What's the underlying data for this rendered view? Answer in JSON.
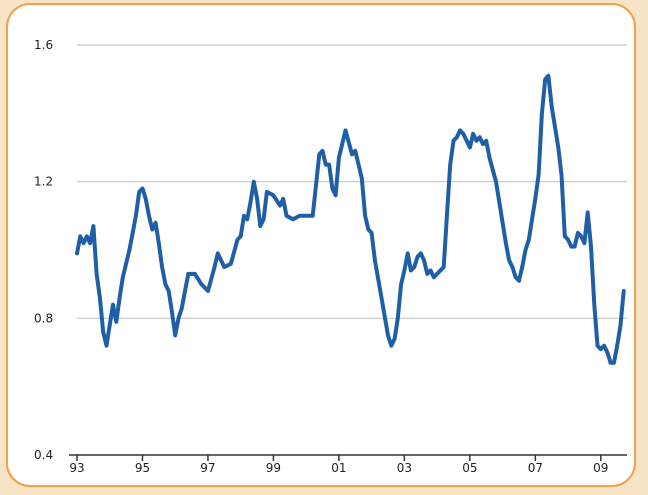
{
  "chart_data": {
    "type": "line",
    "title": "",
    "xlabel": "",
    "ylabel": "",
    "xlim": [
      1993.0,
      2009.8
    ],
    "ylim": [
      0.4,
      1.6
    ],
    "yticks": [
      0.4,
      0.8,
      1.2,
      1.6
    ],
    "ytick_labels": [
      "0.4",
      "0.8",
      "1.2",
      "1.6"
    ],
    "xticks": [
      1993,
      1995,
      1997,
      1999,
      2001,
      2003,
      2005,
      2007,
      2009
    ],
    "xtick_labels": [
      "93",
      "95",
      "97",
      "99",
      "01",
      "03",
      "05",
      "07",
      "09"
    ],
    "grid": "horizontal",
    "legend": "none",
    "colors": {
      "line": "#1f5fa6",
      "grid": "#c8c8c8",
      "axis": "#333333",
      "frame": "#f0a14a",
      "background": "#f7e3c6"
    },
    "series": [
      {
        "x": [
          1993.0,
          1993.1,
          1993.2,
          1993.3,
          1993.4,
          1993.5,
          1993.6,
          1993.7,
          1993.8,
          1993.9,
          1994.0,
          1994.1,
          1994.2,
          1994.3,
          1994.4,
          1994.5,
          1994.6,
          1994.7,
          1994.8,
          1994.9,
          1995.0,
          1995.1,
          1995.2,
          1995.3,
          1995.4,
          1995.5,
          1995.6,
          1995.7,
          1995.8,
          1995.9,
          1996.0,
          1996.1,
          1996.2,
          1996.3,
          1996.4,
          1996.5,
          1996.6,
          1996.8,
          1997.0,
          1997.2,
          1997.3,
          1997.5,
          1997.7,
          1997.9,
          1998.0,
          1998.1,
          1998.2,
          1998.3,
          1998.4,
          1998.5,
          1998.6,
          1998.7,
          1998.8,
          1999.0,
          1999.2,
          1999.3,
          1999.4,
          1999.6,
          1999.8,
          2000.0,
          2000.2,
          2000.4,
          2000.5,
          2000.6,
          2000.7,
          2000.8,
          2000.9,
          2001.0,
          2001.1,
          2001.2,
          2001.4,
          2001.5,
          2001.7,
          2001.8,
          2001.9,
          2002.0,
          2002.1,
          2002.3,
          2002.5,
          2002.6,
          2002.7,
          2002.8,
          2002.9,
          2003.0,
          2003.1,
          2003.2,
          2003.3,
          2003.4,
          2003.5,
          2003.6,
          2003.7,
          2003.8,
          2003.9,
          2004.0,
          2004.2,
          2004.3,
          2004.4,
          2004.5,
          2004.6,
          2004.7,
          2004.8,
          2005.0,
          2005.1,
          2005.2,
          2005.3,
          2005.4,
          2005.5,
          2005.6,
          2005.8,
          2006.0,
          2006.1,
          2006.2,
          2006.3,
          2006.4,
          2006.5,
          2006.6,
          2006.7,
          2006.8,
          2007.0,
          2007.1,
          2007.2,
          2007.3,
          2007.4,
          2007.5,
          2007.6,
          2007.7,
          2007.8,
          2007.9,
          2008.0,
          2008.1,
          2008.2,
          2008.3,
          2008.4,
          2008.5,
          2008.6,
          2008.7,
          2008.8,
          2008.9,
          2009.0,
          2009.1,
          2009.2,
          2009.3,
          2009.4,
          2009.5,
          2009.6,
          2009.7
        ],
        "values": [
          0.99,
          1.04,
          1.02,
          1.04,
          1.02,
          1.07,
          0.93,
          0.86,
          0.76,
          0.72,
          0.78,
          0.84,
          0.79,
          0.86,
          0.92,
          0.96,
          1.0,
          1.05,
          1.1,
          1.17,
          1.18,
          1.15,
          1.1,
          1.06,
          1.08,
          1.02,
          0.95,
          0.9,
          0.88,
          0.82,
          0.75,
          0.8,
          0.83,
          0.88,
          0.93,
          0.93,
          0.93,
          0.9,
          0.88,
          0.95,
          0.99,
          0.95,
          0.96,
          1.03,
          1.04,
          1.1,
          1.09,
          1.14,
          1.2,
          1.15,
          1.07,
          1.09,
          1.17,
          1.16,
          1.13,
          1.15,
          1.1,
          1.09,
          1.1,
          1.1,
          1.1,
          1.28,
          1.29,
          1.25,
          1.25,
          1.18,
          1.16,
          1.27,
          1.31,
          1.35,
          1.28,
          1.29,
          1.21,
          1.1,
          1.06,
          1.05,
          0.97,
          0.86,
          0.75,
          0.72,
          0.74,
          0.8,
          0.9,
          0.94,
          0.99,
          0.94,
          0.95,
          0.98,
          0.99,
          0.97,
          0.93,
          0.94,
          0.92,
          0.93,
          0.95,
          1.1,
          1.25,
          1.32,
          1.33,
          1.35,
          1.34,
          1.3,
          1.34,
          1.32,
          1.33,
          1.31,
          1.32,
          1.27,
          1.2,
          1.08,
          1.02,
          0.97,
          0.95,
          0.92,
          0.91,
          0.95,
          1.0,
          1.03,
          1.15,
          1.22,
          1.4,
          1.5,
          1.51,
          1.42,
          1.36,
          1.3,
          1.22,
          1.04,
          1.03,
          1.01,
          1.01,
          1.05,
          1.04,
          1.02,
          1.11,
          1.01,
          0.84,
          0.72,
          0.71,
          0.72,
          0.7,
          0.67,
          0.67,
          0.72,
          0.78,
          0.88
        ]
      }
    ]
  }
}
